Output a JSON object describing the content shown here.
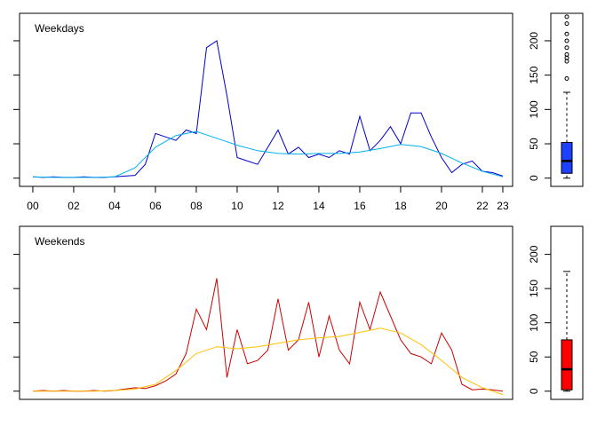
{
  "chart_data": [
    {
      "type": "line",
      "title": "Weekdays",
      "xlim": [
        -0.65,
        23.48
      ],
      "ylim": [
        -12,
        240
      ],
      "xticks": [
        {
          "value": 0,
          "label": "00"
        },
        {
          "value": 2,
          "label": "02"
        },
        {
          "value": 4,
          "label": "04"
        },
        {
          "value": 6,
          "label": "06"
        },
        {
          "value": 8,
          "label": "08"
        },
        10,
        12,
        14,
        16,
        18,
        20,
        22,
        23
      ],
      "yticks": [
        0,
        50,
        100,
        150,
        200
      ],
      "series": [
        {
          "color": "#0000cd",
          "x": [
            0,
            0.5,
            1,
            1.5,
            2,
            2.5,
            3,
            3.5,
            4,
            4.5,
            5,
            5.5,
            6,
            6.5,
            7,
            7.5,
            8,
            8.5,
            9,
            9.5,
            10,
            10.5,
            11,
            11.5,
            12,
            12.5,
            13,
            13.5,
            14,
            14.5,
            15,
            15.5,
            16,
            16.5,
            17,
            17.5,
            18,
            18.5,
            19,
            19.5,
            20,
            20.5,
            21,
            21.5,
            22,
            22.5,
            23
          ],
          "values": [
            2,
            1,
            2,
            1,
            1,
            2,
            1,
            1,
            2,
            3,
            4,
            20,
            65,
            60,
            55,
            70,
            65,
            190,
            200,
            120,
            30,
            25,
            20,
            45,
            70,
            35,
            45,
            30,
            35,
            30,
            40,
            35,
            90,
            40,
            55,
            75,
            50,
            95,
            95,
            60,
            30,
            8,
            20,
            25,
            10,
            8,
            3
          ]
        },
        {
          "color": "#00b2ee",
          "x": [
            0,
            1,
            2,
            3,
            4,
            5,
            6,
            7,
            8,
            9,
            10,
            11,
            12,
            13,
            14,
            15,
            16,
            17,
            18,
            19,
            20,
            21,
            22,
            23
          ],
          "values": [
            2,
            1,
            1,
            1,
            2,
            15,
            45,
            62,
            68,
            58,
            48,
            40,
            36,
            35,
            36,
            36,
            38,
            43,
            49,
            46,
            36,
            22,
            10,
            2
          ]
        }
      ]
    },
    {
      "type": "box",
      "ylim": [
        -12,
        240
      ],
      "yticks": [
        0,
        50,
        100,
        150,
        200
      ],
      "color": "#1e40ff",
      "whisker_low": 0,
      "q1": 7,
      "median": 25,
      "q3": 52,
      "whisker_high": 125,
      "outliers": [
        145,
        170,
        175,
        180,
        190,
        200,
        210,
        225,
        235
      ]
    },
    {
      "type": "line",
      "title": "Weekends",
      "xlim": [
        -0.65,
        23.48
      ],
      "ylim": [
        -12,
        241
      ],
      "yticks": [
        0,
        50,
        100,
        150,
        200
      ],
      "series": [
        {
          "color": "#cc0000",
          "x": [
            0,
            0.5,
            1,
            1.5,
            2,
            2.5,
            3,
            3.5,
            4,
            4.5,
            5,
            5.5,
            6,
            6.5,
            7,
            7.5,
            8,
            8.5,
            9,
            9.5,
            10,
            10.5,
            11,
            11.5,
            12,
            12.5,
            13,
            13.5,
            14,
            14.5,
            15,
            15.5,
            16,
            16.5,
            17,
            17.5,
            18,
            18.5,
            19,
            19.5,
            20,
            20.5,
            21,
            21.5,
            22,
            22.5,
            23
          ],
          "values": [
            0,
            1,
            0,
            1,
            0,
            0,
            1,
            0,
            1,
            3,
            5,
            4,
            8,
            15,
            25,
            55,
            120,
            90,
            165,
            20,
            90,
            40,
            45,
            60,
            135,
            60,
            75,
            130,
            50,
            110,
            60,
            40,
            130,
            90,
            145,
            110,
            75,
            55,
            50,
            40,
            85,
            60,
            10,
            2,
            3,
            2,
            0
          ]
        },
        {
          "color": "#ffc000",
          "x": [
            0,
            1,
            2,
            3,
            4,
            5,
            6,
            7,
            8,
            9,
            10,
            11,
            12,
            13,
            14,
            15,
            16,
            17,
            18,
            19,
            20,
            21,
            22,
            23
          ],
          "values": [
            0,
            0,
            0,
            0,
            1,
            3,
            10,
            30,
            55,
            65,
            62,
            65,
            70,
            75,
            78,
            80,
            86,
            92,
            85,
            68,
            45,
            20,
            5,
            -5
          ]
        }
      ]
    },
    {
      "type": "box",
      "ylim": [
        -12,
        241
      ],
      "yticks": [
        0,
        50,
        100,
        150,
        200
      ],
      "color": "#ff0000",
      "whisker_low": 0,
      "q1": 2,
      "median": 32,
      "q3": 75,
      "whisker_high": 175,
      "outliers": []
    }
  ]
}
